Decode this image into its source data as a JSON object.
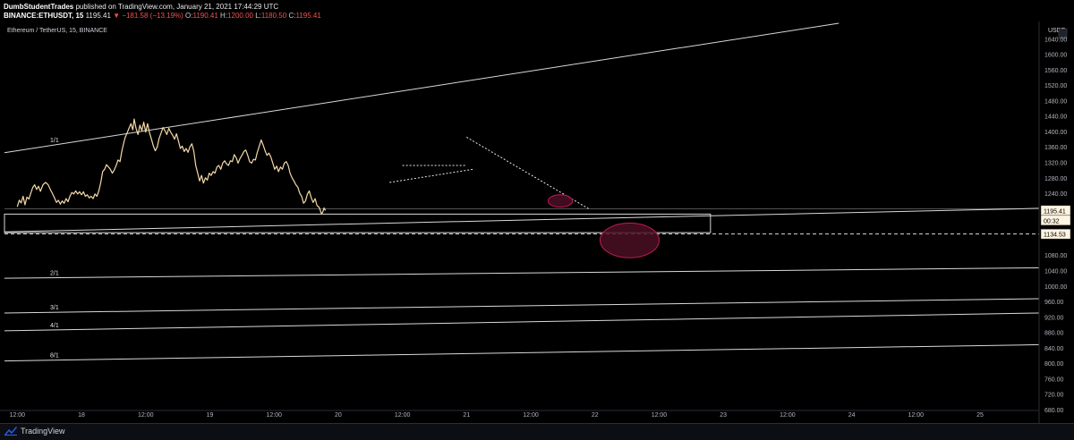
{
  "header": {
    "author": "DumbStudentTrades",
    "published_text": "published on TradingView.com, January 21, 2021 17:44:29 UTC",
    "symbol": "BINANCE:ETHUSDT, 15",
    "last": "1195.41",
    "change": "−181.58 (−13.19%)",
    "o_label": "O:",
    "o": "1190.41",
    "h_label": "H:",
    "h": "1200.00",
    "l_label": "L:",
    "l": "1180.50",
    "c_label": "C:",
    "c": "1195.41"
  },
  "pane_title": "Ethereum / TetherUS, 15, BINANCE",
  "currency": "USDT",
  "brand": "TradingView",
  "colors": {
    "background": "#000000",
    "price_line": "#f5d9a8",
    "lines": "#d9d9d9",
    "ellipse_fill": "#4a0f22",
    "ellipse_stroke": "#c2185b",
    "down": "#ef5350",
    "price_tag_bg": "#fff4e0"
  },
  "chart_data": {
    "type": "line",
    "series": [
      {
        "values": [
          [
            0.0,
            1205
          ],
          [
            0.15,
            1222
          ],
          [
            0.3,
            1215
          ],
          [
            0.45,
            1232
          ],
          [
            0.6,
            1210
          ],
          [
            0.75,
            1230
          ],
          [
            0.9,
            1225
          ],
          [
            1.05,
            1240
          ],
          [
            1.2,
            1255
          ],
          [
            1.35,
            1262
          ],
          [
            1.5,
            1250
          ],
          [
            1.65,
            1258
          ],
          [
            1.8,
            1245
          ],
          [
            2.0,
            1262
          ],
          [
            2.2,
            1268
          ],
          [
            2.4,
            1262
          ],
          [
            2.6,
            1248
          ],
          [
            2.75,
            1238
          ],
          [
            2.9,
            1228
          ],
          [
            3.05,
            1216
          ],
          [
            3.2,
            1222
          ],
          [
            3.35,
            1212
          ],
          [
            3.5,
            1220
          ],
          [
            3.65,
            1214
          ],
          [
            3.8,
            1226
          ],
          [
            3.95,
            1218
          ],
          [
            4.1,
            1232
          ],
          [
            4.25,
            1242
          ],
          [
            4.4,
            1238
          ],
          [
            4.55,
            1246
          ],
          [
            4.7,
            1238
          ],
          [
            4.85,
            1244
          ],
          [
            5.0,
            1236
          ],
          [
            5.15,
            1244
          ],
          [
            5.3,
            1232
          ],
          [
            5.45,
            1236
          ],
          [
            5.6,
            1228
          ],
          [
            5.75,
            1232
          ],
          [
            5.9,
            1226
          ],
          [
            6.05,
            1238
          ],
          [
            6.2,
            1232
          ],
          [
            6.35,
            1246
          ],
          [
            6.5,
            1268
          ],
          [
            6.65,
            1296
          ],
          [
            6.8,
            1302
          ],
          [
            6.95,
            1314
          ],
          [
            7.1,
            1308
          ],
          [
            7.25,
            1302
          ],
          [
            7.4,
            1292
          ],
          [
            7.55,
            1300
          ],
          [
            7.7,
            1312
          ],
          [
            7.85,
            1326
          ],
          [
            8.0,
            1322
          ],
          [
            8.15,
            1350
          ],
          [
            8.3,
            1372
          ],
          [
            8.4,
            1384
          ],
          [
            8.55,
            1396
          ],
          [
            8.7,
            1408
          ],
          [
            8.85,
            1420
          ],
          [
            9.0,
            1404
          ],
          [
            9.1,
            1432
          ],
          [
            9.25,
            1408
          ],
          [
            9.4,
            1392
          ],
          [
            9.55,
            1416
          ],
          [
            9.7,
            1402
          ],
          [
            9.85,
            1424
          ],
          [
            10.0,
            1398
          ],
          [
            10.15,
            1420
          ],
          [
            10.3,
            1396
          ],
          [
            10.45,
            1380
          ],
          [
            10.6,
            1362
          ],
          [
            10.75,
            1350
          ],
          [
            10.9,
            1360
          ],
          [
            11.05,
            1382
          ],
          [
            11.2,
            1396
          ],
          [
            11.35,
            1410
          ],
          [
            11.5,
            1402
          ],
          [
            11.65,
            1392
          ],
          [
            11.8,
            1408
          ],
          [
            11.95,
            1398
          ],
          [
            12.1,
            1390
          ],
          [
            12.25,
            1380
          ],
          [
            12.4,
            1394
          ],
          [
            12.55,
            1376
          ],
          [
            12.7,
            1356
          ],
          [
            12.85,
            1362
          ],
          [
            13.0,
            1348
          ],
          [
            13.15,
            1356
          ],
          [
            13.3,
            1346
          ],
          [
            13.45,
            1360
          ],
          [
            13.6,
            1368
          ],
          [
            13.75,
            1348
          ],
          [
            13.9,
            1312
          ],
          [
            14.05,
            1292
          ],
          [
            14.2,
            1272
          ],
          [
            14.35,
            1286
          ],
          [
            14.5,
            1266
          ],
          [
            14.65,
            1280
          ],
          [
            14.8,
            1274
          ],
          [
            14.95,
            1292
          ],
          [
            15.1,
            1286
          ],
          [
            15.25,
            1296
          ],
          [
            15.4,
            1292
          ],
          [
            15.55,
            1308
          ],
          [
            15.7,
            1312
          ],
          [
            15.85,
            1302
          ],
          [
            16.0,
            1318
          ],
          [
            16.15,
            1324
          ],
          [
            16.3,
            1316
          ],
          [
            16.45,
            1312
          ],
          [
            16.6,
            1324
          ],
          [
            16.75,
            1322
          ],
          [
            16.9,
            1340
          ],
          [
            17.05,
            1332
          ],
          [
            17.2,
            1318
          ],
          [
            17.35,
            1330
          ],
          [
            17.5,
            1338
          ],
          [
            17.65,
            1348
          ],
          [
            17.8,
            1352
          ],
          [
            17.95,
            1338
          ],
          [
            18.1,
            1322
          ],
          [
            18.25,
            1318
          ],
          [
            18.4,
            1328
          ],
          [
            18.55,
            1326
          ],
          [
            18.7,
            1346
          ],
          [
            18.85,
            1362
          ],
          [
            19.0,
            1378
          ],
          [
            19.15,
            1365
          ],
          [
            19.3,
            1350
          ],
          [
            19.45,
            1338
          ],
          [
            19.6,
            1344
          ],
          [
            19.75,
            1334
          ],
          [
            19.9,
            1318
          ],
          [
            20.05,
            1302
          ],
          [
            20.2,
            1310
          ],
          [
            20.35,
            1296
          ],
          [
            20.5,
            1308
          ],
          [
            20.65,
            1302
          ],
          [
            20.8,
            1318
          ],
          [
            20.95,
            1322
          ],
          [
            21.1,
            1312
          ],
          [
            21.25,
            1292
          ],
          [
            21.4,
            1280
          ],
          [
            21.55,
            1272
          ],
          [
            21.7,
            1262
          ],
          [
            21.85,
            1256
          ],
          [
            22.0,
            1240
          ],
          [
            22.15,
            1232
          ],
          [
            22.3,
            1214
          ],
          [
            22.45,
            1220
          ],
          [
            22.6,
            1238
          ],
          [
            22.75,
            1246
          ],
          [
            22.9,
            1228
          ],
          [
            23.05,
            1216
          ],
          [
            23.2,
            1226
          ],
          [
            23.35,
            1208
          ],
          [
            23.5,
            1204
          ],
          [
            23.6,
            1196
          ],
          [
            23.7,
            1186
          ],
          [
            23.8,
            1192
          ],
          [
            23.9,
            1202
          ],
          [
            24.0,
            1195.41
          ]
        ]
      }
    ],
    "x_axis": {
      "range_hours": [
        -1.0,
        79.6
      ],
      "ticks": [
        {
          "t": 0.0,
          "label": "12:00"
        },
        {
          "t": 5.0,
          "label": "18"
        },
        {
          "t": 10.0,
          "label": "12:00"
        },
        {
          "t": 15.0,
          "label": "19"
        },
        {
          "t": 20.0,
          "label": "12:00"
        },
        {
          "t": 25.0,
          "label": "20"
        },
        {
          "t": 30.0,
          "label": "12:00"
        },
        {
          "t": 35.0,
          "label": "21"
        },
        {
          "t": 40.0,
          "label": "12:00"
        },
        {
          "t": 45.0,
          "label": "22"
        },
        {
          "t": 50.0,
          "label": "12:00"
        },
        {
          "t": 55.0,
          "label": "23"
        },
        {
          "t": 60.0,
          "label": "12:00"
        },
        {
          "t": 65.0,
          "label": "24"
        },
        {
          "t": 70.0,
          "label": "12:00"
        },
        {
          "t": 75.0,
          "label": "25"
        },
        {
          "t": 80.0,
          "label": "12:00"
        }
      ]
    },
    "y_axis": {
      "range": [
        680,
        1680
      ],
      "ticks": [
        {
          "v": 1640,
          "label": "1640.00"
        },
        {
          "v": 1600,
          "label": "1600.00"
        },
        {
          "v": 1560,
          "label": "1560.00"
        },
        {
          "v": 1520,
          "label": "1520.00"
        },
        {
          "v": 1480,
          "label": "1480.00"
        },
        {
          "v": 1440,
          "label": "1440.00"
        },
        {
          "v": 1400,
          "label": "1400.00"
        },
        {
          "v": 1360,
          "label": "1360.00"
        },
        {
          "v": 1320,
          "label": "1320.00"
        },
        {
          "v": 1280,
          "label": "1280.00"
        },
        {
          "v": 1240,
          "label": "1240.00"
        },
        {
          "v": 1080,
          "label": "1080.00"
        },
        {
          "v": 1040,
          "label": "1040.00"
        },
        {
          "v": 1000,
          "label": "1000.00"
        },
        {
          "v": 960,
          "label": "960.00"
        },
        {
          "v": 920,
          "label": "920.00"
        },
        {
          "v": 880,
          "label": "880.00"
        },
        {
          "v": 840,
          "label": "840.00"
        },
        {
          "v": 800,
          "label": "800.00"
        },
        {
          "v": 760,
          "label": "760.00"
        },
        {
          "v": 720,
          "label": "720.00"
        },
        {
          "v": 680,
          "label": "680.00"
        }
      ]
    },
    "price_tags": [
      {
        "value": 1195.41,
        "label": "1195.41",
        "kind": "last"
      },
      {
        "value": 1170,
        "label": "00:32",
        "kind": "countdown"
      },
      {
        "value": 1134.53,
        "label": "1134.53",
        "kind": "level"
      }
    ],
    "fan_lines": [
      {
        "label": "1/1",
        "p1": [
          -1.0,
          1345
        ],
        "p2": [
          64.0,
          1680
        ]
      },
      {
        "label": "",
        "p1": [
          -1.0,
          1140
        ],
        "p2": [
          79.6,
          1201
        ]
      },
      {
        "label": "2/1",
        "p1": [
          -1.0,
          1020
        ],
        "p2": [
          79.6,
          1047
        ]
      },
      {
        "label": "3/1",
        "p1": [
          -1.0,
          930
        ],
        "p2": [
          79.6,
          967
        ]
      },
      {
        "label": "4/1",
        "p1": [
          -1.0,
          884
        ],
        "p2": [
          79.6,
          930
        ]
      },
      {
        "label": "8/1",
        "p1": [
          -1.0,
          806
        ],
        "p2": [
          79.6,
          848
        ]
      }
    ],
    "horizontal_levels": [
      {
        "value": 1134.53,
        "style": "dashed"
      },
      {
        "value": 1200,
        "style": "solid-thin"
      }
    ],
    "rectangle": {
      "x0": -1.0,
      "x1": 54.0,
      "top": 1186,
      "bottom": 1138
    },
    "trendlines": [
      {
        "style": "dotted",
        "p1": [
          29.0,
          1268
        ],
        "p2": [
          35.5,
          1302
        ]
      },
      {
        "style": "dotted",
        "p1": [
          30.0,
          1312
        ],
        "p2": [
          35.0,
          1312
        ]
      },
      {
        "style": "dotted",
        "p1": [
          35.0,
          1385
        ],
        "p2": [
          44.5,
          1200
        ]
      }
    ],
    "ellipses": [
      {
        "cx": 42.3,
        "cy": 1220,
        "rx": 0.95,
        "ry": 16
      },
      {
        "cx": 47.7,
        "cy": 1118,
        "rx": 2.3,
        "ry": 45
      }
    ],
    "grid": false,
    "legend": "none"
  }
}
